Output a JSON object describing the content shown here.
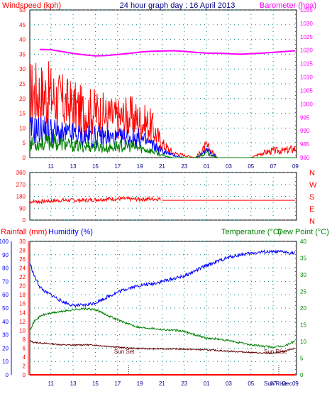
{
  "title": "24 hour graph day : 16 April 2013",
  "colors": {
    "wind": "#ff0000",
    "gust_mid": "#0000ff",
    "avg": "#008000",
    "baro": "#ff00ff",
    "dir": "#ff0000",
    "humidity": "#0000ff",
    "temperature": "#008000",
    "dewpoint": "#600000",
    "rain": "#ff0000",
    "axis_left_top": "#ff0000",
    "axis_right_top": "#ff00ff",
    "axis_rain": "#ff0000",
    "axis_hum": "#0000ff",
    "axis_temp": "#008000",
    "title": "#000080",
    "grid": "#008080"
  },
  "chart_data": [
    {
      "type": "line",
      "name": "wind-baro-panel",
      "ylabel": "Windspeed (kph)",
      "y2label": "Barometer (hpa)",
      "ylim": [
        0,
        50
      ],
      "y2lim": [
        980,
        1035
      ],
      "yticks": [
        "0",
        "5",
        "10",
        "15",
        "20",
        "25",
        "30",
        "35",
        "40",
        "45",
        "50"
      ],
      "y2ticks": [
        "980",
        "985",
        "990",
        "995",
        "1000",
        "1005",
        "1010",
        "1015",
        "1020",
        "1025",
        "1030",
        "1035"
      ],
      "xticks": [
        "11",
        "13",
        "15",
        "17",
        "19",
        "21",
        "23",
        "01",
        "03",
        "05",
        "07",
        "09"
      ],
      "grid": true,
      "series": [
        {
          "key": "gust",
          "x": [
            10,
            11,
            12,
            13,
            14,
            15,
            16,
            17,
            18,
            19,
            20,
            21,
            22,
            23,
            24,
            25,
            26,
            27,
            28,
            29,
            30,
            31,
            32,
            33
          ],
          "values": [
            28,
            27,
            24,
            22,
            20,
            20,
            18,
            17,
            18,
            16,
            14,
            6,
            2,
            1,
            0,
            5,
            0,
            0,
            0,
            0,
            2,
            3,
            3,
            4
          ]
        },
        {
          "key": "gust_mid",
          "x": [
            10,
            11,
            12,
            13,
            14,
            15,
            16,
            17,
            18,
            19,
            20,
            21,
            22,
            23,
            24,
            25,
            26,
            27,
            28,
            29,
            30,
            31,
            32,
            33
          ],
          "values": [
            12,
            12,
            10,
            10,
            9,
            9,
            9,
            8,
            9,
            8,
            6,
            3,
            1,
            0,
            0,
            3,
            0,
            0,
            0,
            0,
            0,
            0,
            0,
            0
          ]
        },
        {
          "key": "avg",
          "x": [
            10,
            11,
            12,
            13,
            14,
            15,
            16,
            17,
            18,
            19,
            20,
            21,
            22,
            23,
            24,
            25,
            26,
            27,
            28,
            29,
            30,
            31,
            32,
            33
          ],
          "values": [
            6,
            7,
            6,
            5,
            5,
            5,
            4,
            5,
            5,
            4,
            3,
            1,
            0,
            0,
            0,
            2,
            0,
            0,
            0,
            0,
            0,
            0,
            0,
            0
          ]
        },
        {
          "key": "baro",
          "x": [
            10,
            11,
            12,
            13,
            14,
            15,
            16,
            17,
            18,
            19,
            20,
            21,
            22,
            23,
            24,
            25,
            26,
            27,
            28,
            29,
            30,
            31,
            32,
            33
          ],
          "values": [
            1020.3,
            1020.2,
            1019.5,
            1018.8,
            1018.3,
            1017.9,
            1018.0,
            1018.4,
            1018.8,
            1019.3,
            1019.6,
            1019.7,
            1019.8,
            1019.6,
            1019.2,
            1018.9,
            1018.9,
            1018.7,
            1018.5,
            1018.7,
            1018.9,
            1019.2,
            1019.5,
            1019.8
          ]
        }
      ]
    },
    {
      "type": "line",
      "name": "wind-direction-panel",
      "yticks": [
        "360",
        "270",
        "180",
        "90",
        "0"
      ],
      "ylim": [
        0,
        360
      ],
      "compass": [
        "N",
        "W",
        "S",
        "E",
        "N"
      ],
      "series": [
        {
          "key": "dir",
          "x": [
            10,
            11,
            12,
            13,
            14,
            15,
            16,
            17,
            18,
            19,
            20,
            20.9,
            21,
            22,
            23,
            24,
            25,
            26,
            27,
            28,
            29,
            30,
            31,
            32,
            33
          ],
          "values": [
            140,
            145,
            150,
            150,
            150,
            155,
            160,
            160,
            160,
            158,
            160,
            160,
            150,
            150,
            150,
            150,
            150,
            150,
            150,
            150,
            150,
            150,
            150,
            150,
            150
          ]
        }
      ]
    },
    {
      "type": "line",
      "name": "temp-hum-rain-panel",
      "ylabel_left1": "Rainfall (mm)",
      "ylabel_left2": "Humidity (%)",
      "ylabel_right1": "Temperature (°C)",
      "ylabel_right2": "Dew Point (°C)",
      "ylim_hum": [
        0,
        100
      ],
      "ylim_rain": [
        0,
        30
      ],
      "ylim_temp": [
        0,
        40
      ],
      "hum_ticks": [
        "0",
        "10",
        "20",
        "30",
        "40",
        "50",
        "60",
        "70",
        "80",
        "90",
        "100"
      ],
      "rain_ticks": [
        "0",
        "2",
        "4",
        "6",
        "8",
        "10",
        "12",
        "14",
        "16",
        "18",
        "20",
        "22",
        "24",
        "26",
        "28",
        "30"
      ],
      "temp_ticks": [
        "0",
        "5",
        "10",
        "15",
        "20",
        "25",
        "30",
        "35",
        "40"
      ],
      "xticks": [
        "11",
        "13",
        "15",
        "17",
        "19",
        "21",
        "23",
        "01",
        "03",
        "05",
        "07",
        "09"
      ],
      "annotations": [
        "Sun Set",
        "Sun Rise",
        "Sun Rise",
        "Dec"
      ],
      "series": [
        {
          "key": "humidity",
          "x": [
            9.1,
            9.5,
            10,
            10.5,
            11,
            12,
            13,
            14,
            15,
            16,
            17,
            18,
            19,
            20,
            21,
            22,
            23,
            24,
            25,
            26,
            27,
            28,
            29,
            30,
            31,
            32,
            33
          ],
          "values": [
            84,
            74,
            66,
            62,
            60,
            55,
            52,
            52,
            54,
            58,
            62,
            65,
            67,
            68,
            70,
            72,
            74,
            78,
            82,
            85,
            88,
            90,
            91,
            92,
            92,
            92,
            91
          ]
        },
        {
          "key": "temperature",
          "x": [
            9.1,
            9.5,
            10,
            10.5,
            11,
            12,
            13,
            14,
            15,
            16,
            17,
            18,
            19,
            20,
            21,
            22,
            23,
            24,
            25,
            26,
            27,
            28,
            29,
            30,
            31,
            32,
            33
          ],
          "values": [
            13.5,
            16,
            17.5,
            18.2,
            18.5,
            19,
            19.5,
            19.8,
            19.5,
            18,
            16.5,
            15.2,
            14.2,
            14,
            13.6,
            13.4,
            13,
            12,
            11,
            10.7,
            10.2,
            9.6,
            9,
            8.6,
            8.3,
            8.6,
            10.2
          ]
        },
        {
          "key": "dewpoint",
          "x": [
            9.1,
            9.5,
            10,
            10.5,
            11,
            12,
            13,
            14,
            15,
            16,
            17,
            18,
            19,
            20,
            21,
            22,
            23,
            24,
            25,
            26,
            27,
            28,
            29,
            30,
            31,
            32,
            33
          ],
          "values": [
            10.2,
            9.7,
            9.6,
            9.4,
            9.3,
            9.0,
            8.9,
            9.0,
            8.9,
            8.6,
            8.3,
            8.0,
            7.9,
            7.8,
            7.8,
            7.8,
            7.7,
            7.6,
            7.5,
            7.3,
            7.1,
            6.9,
            6.7,
            6.5,
            6.5,
            7.0,
            8.0
          ]
        },
        {
          "key": "rain",
          "x": [
            9.1,
            33
          ],
          "values": [
            0,
            0
          ]
        }
      ]
    }
  ]
}
